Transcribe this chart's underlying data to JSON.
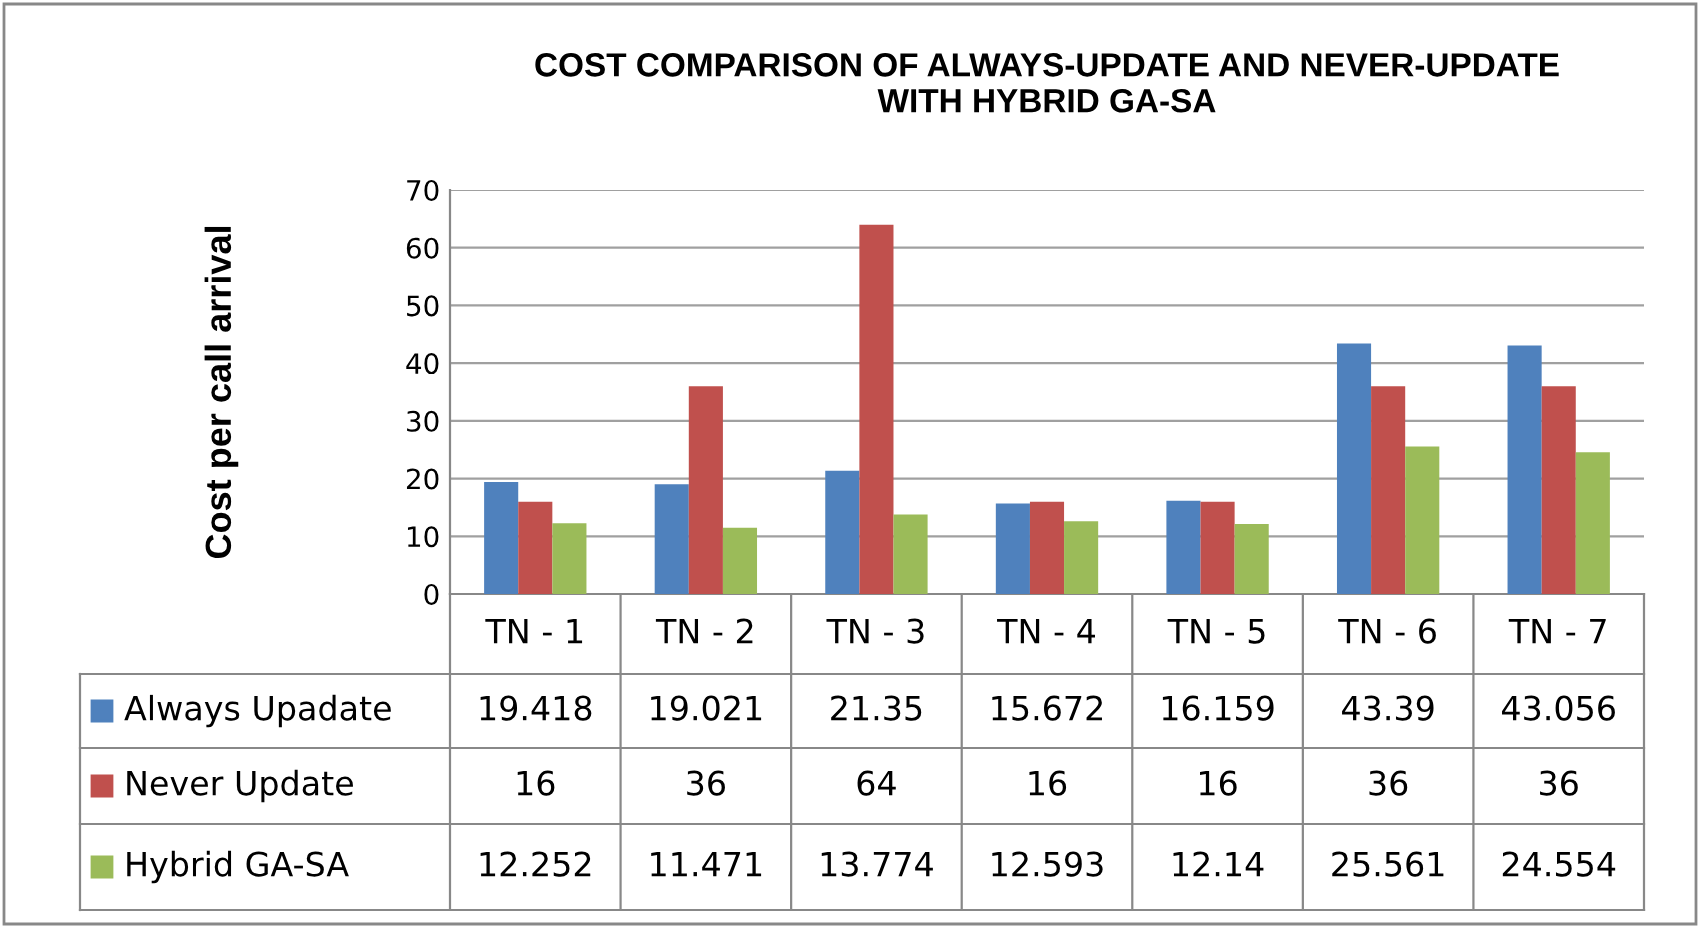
{
  "chart_data": {
    "type": "bar",
    "title": "COST COMPARISON OF ALWAYS-UPDATE AND NEVER-UPDATE\nWITH HYBRID GA-SA",
    "ylabel": "Cost per call arrival",
    "categories": [
      "TN - 1",
      "TN - 2",
      "TN - 3",
      "TN - 4",
      "TN - 5",
      "TN - 6",
      "TN - 7"
    ],
    "series": [
      {
        "name": "Always Upadate",
        "color": "#4f81bd",
        "values": [
          19.418,
          19.021,
          21.35,
          15.672,
          16.159,
          43.39,
          43.056
        ]
      },
      {
        "name": "Never Update",
        "color": "#c0504d",
        "values": [
          16,
          36,
          64,
          16,
          16,
          36,
          36
        ]
      },
      {
        "name": "Hybrid GA-SA",
        "color": "#9bbb59",
        "values": [
          12.252,
          11.471,
          13.774,
          12.593,
          12.14,
          25.561,
          24.554
        ]
      }
    ],
    "ylim": [
      0,
      70
    ],
    "yticks": [
      0,
      10,
      20,
      30,
      40,
      50,
      60,
      70
    ],
    "grid": "y",
    "legend": "bottom",
    "data_labels": true
  }
}
